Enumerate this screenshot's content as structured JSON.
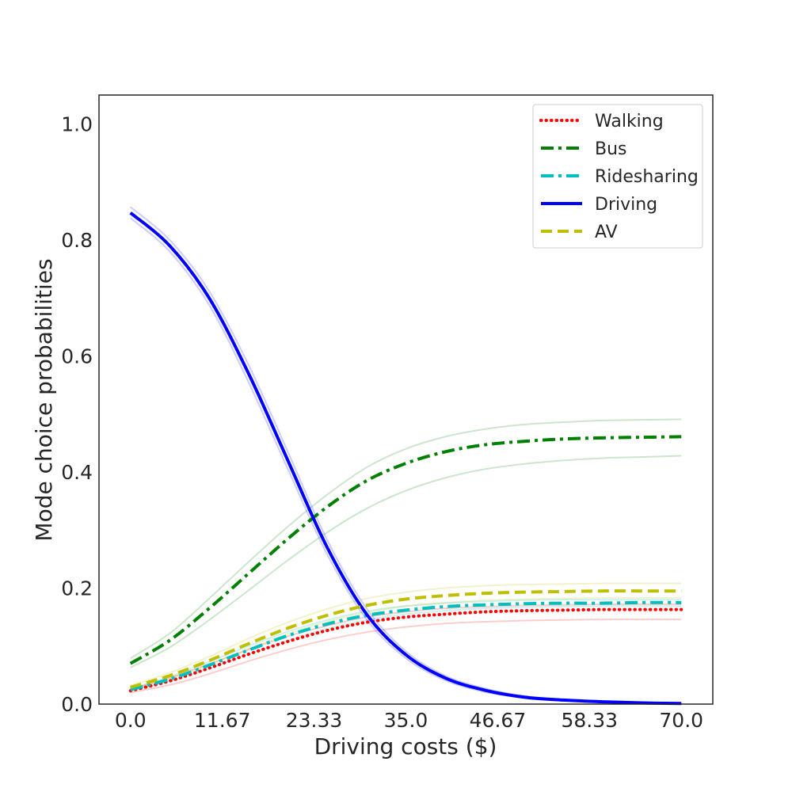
{
  "chart_data": {
    "type": "line",
    "title": "",
    "xlabel": "Driving costs ($)",
    "ylabel": "Mode choice probabilities",
    "xlim": [
      -4,
      74
    ],
    "ylim": [
      0,
      1.05
    ],
    "xticks": [
      0,
      11.67,
      23.33,
      35.0,
      46.67,
      58.33,
      70.0
    ],
    "xtick_labels": [
      "0.0",
      "11.67",
      "23.33",
      "35.0",
      "46.67",
      "58.33",
      "70.0"
    ],
    "yticks": [
      0,
      0.2,
      0.4,
      0.6,
      0.8,
      1.0
    ],
    "ytick_labels": [
      "0.0",
      "0.2",
      "0.4",
      "0.6",
      "0.8",
      "1.0"
    ],
    "grid": false,
    "legend_position": "top-right",
    "x": [
      0,
      5,
      10,
      15,
      20,
      25,
      30,
      35,
      40,
      45,
      50,
      55,
      60,
      65,
      70
    ],
    "series": [
      {
        "name": "Walking",
        "color": "#ff0000",
        "style": "dotted",
        "values": [
          0.023,
          0.04,
          0.062,
          0.086,
          0.108,
          0.127,
          0.141,
          0.15,
          0.155,
          0.159,
          0.161,
          0.162,
          0.163,
          0.163,
          0.163
        ],
        "bands": [
          [
            0.02,
            0.033,
            0.052,
            0.074,
            0.094,
            0.111,
            0.124,
            0.133,
            0.139,
            0.142,
            0.144,
            0.145,
            0.146,
            0.146,
            0.146
          ],
          [
            0.026,
            0.045,
            0.069,
            0.094,
            0.117,
            0.135,
            0.15,
            0.159,
            0.165,
            0.168,
            0.17,
            0.171,
            0.172,
            0.172,
            0.172
          ]
        ]
      },
      {
        "name": "Bus",
        "color": "#008000",
        "style": "dashdot",
        "values": [
          0.07,
          0.11,
          0.165,
          0.225,
          0.285,
          0.34,
          0.385,
          0.415,
          0.435,
          0.447,
          0.453,
          0.457,
          0.459,
          0.46,
          0.461
        ],
        "bands": [
          [
            0.063,
            0.098,
            0.145,
            0.196,
            0.248,
            0.296,
            0.337,
            0.368,
            0.39,
            0.405,
            0.414,
            0.42,
            0.424,
            0.426,
            0.428
          ],
          [
            0.079,
            0.122,
            0.182,
            0.245,
            0.306,
            0.361,
            0.408,
            0.44,
            0.461,
            0.474,
            0.482,
            0.486,
            0.489,
            0.49,
            0.491
          ]
        ]
      },
      {
        "name": "Ridesharing",
        "color": "#00bfbf",
        "style": "dashdot",
        "values": [
          0.025,
          0.043,
          0.067,
          0.093,
          0.118,
          0.138,
          0.153,
          0.162,
          0.168,
          0.171,
          0.173,
          0.174,
          0.174,
          0.175,
          0.175
        ],
        "bands": [
          [
            0.023,
            0.039,
            0.061,
            0.086,
            0.11,
            0.13,
            0.145,
            0.155,
            0.161,
            0.165,
            0.167,
            0.168,
            0.169,
            0.169,
            0.169
          ],
          [
            0.027,
            0.047,
            0.073,
            0.1,
            0.125,
            0.145,
            0.16,
            0.169,
            0.174,
            0.177,
            0.179,
            0.18,
            0.18,
            0.18,
            0.18
          ]
        ]
      },
      {
        "name": "Driving",
        "color": "#0000ff",
        "style": "solid",
        "values": [
          0.847,
          0.79,
          0.7,
          0.57,
          0.42,
          0.27,
          0.155,
          0.085,
          0.045,
          0.024,
          0.012,
          0.007,
          0.004,
          0.002,
          0.001
        ],
        "bands": [
          [
            0.838,
            0.78,
            0.688,
            0.555,
            0.405,
            0.258,
            0.146,
            0.079,
            0.041,
            0.021,
            0.011,
            0.006,
            0.003,
            0.002,
            0.001
          ],
          [
            0.857,
            0.8,
            0.712,
            0.585,
            0.435,
            0.283,
            0.165,
            0.091,
            0.049,
            0.027,
            0.014,
            0.008,
            0.005,
            0.003,
            0.002
          ]
        ]
      },
      {
        "name": "AV",
        "color": "#bfbf00",
        "style": "dashed",
        "values": [
          0.029,
          0.049,
          0.075,
          0.104,
          0.131,
          0.153,
          0.17,
          0.181,
          0.187,
          0.191,
          0.193,
          0.194,
          0.195,
          0.195,
          0.195
        ],
        "bands": [
          [
            0.026,
            0.044,
            0.068,
            0.095,
            0.121,
            0.142,
            0.158,
            0.169,
            0.175,
            0.179,
            0.181,
            0.182,
            0.183,
            0.183,
            0.183
          ],
          [
            0.032,
            0.054,
            0.082,
            0.113,
            0.141,
            0.164,
            0.182,
            0.193,
            0.2,
            0.204,
            0.206,
            0.207,
            0.208,
            0.208,
            0.208
          ]
        ]
      }
    ]
  }
}
